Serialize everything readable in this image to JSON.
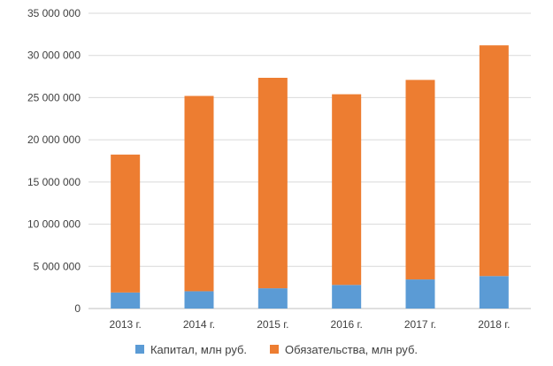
{
  "chart_data": {
    "type": "bar",
    "stacked": true,
    "categories": [
      "2013 г.",
      "2014 г.",
      "2015 г.",
      "2016 г.",
      "2017 г.",
      "2018 г."
    ],
    "series": [
      {
        "name": "Капитал, млн руб.",
        "color": "#5B9BD5",
        "values": [
          1900000,
          2050000,
          2400000,
          2800000,
          3450000,
          3850000
        ]
      },
      {
        "name": "Обязательства, млн руб.",
        "color": "#ED7D31",
        "values": [
          16350000,
          23150000,
          24950000,
          22600000,
          23650000,
          27350000
        ]
      }
    ],
    "ylim": [
      0,
      35000000
    ],
    "yticks": [
      0,
      5000000,
      10000000,
      15000000,
      20000000,
      25000000,
      30000000,
      35000000
    ],
    "ytick_labels": [
      "0",
      "5 000 000",
      "10 000 000",
      "15 000 000",
      "20 000 000",
      "25 000 000",
      "30 000 000",
      "35 000 000"
    ],
    "grid": true,
    "legend_position": "bottom",
    "title": "",
    "xlabel": "",
    "ylabel": ""
  }
}
